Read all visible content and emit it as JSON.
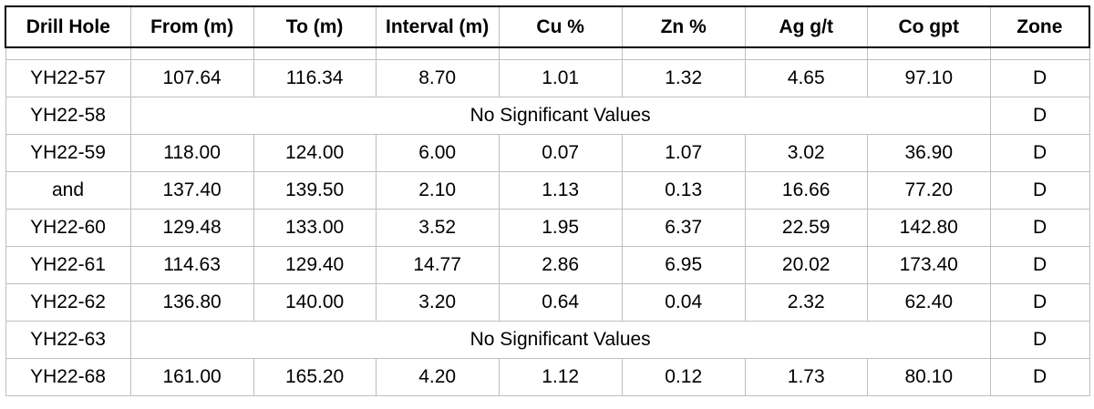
{
  "table": {
    "headers": [
      "Drill Hole",
      "From (m)",
      "To (m)",
      "Interval (m)",
      "Cu %",
      "Zn %",
      "Ag g/t",
      "Co gpt",
      "Zone"
    ],
    "rows": [
      {
        "hole": "YH22-57",
        "from": "107.64",
        "to": "116.34",
        "interval": "8.70",
        "cu": "1.01",
        "zn": "1.32",
        "ag": "4.65",
        "co": "97.10",
        "zone": "D"
      },
      {
        "hole": "YH22-58",
        "note": "No Significant Values",
        "zone": "D"
      },
      {
        "hole": "YH22-59",
        "from": "118.00",
        "to": "124.00",
        "interval": "6.00",
        "cu": "0.07",
        "zn": "1.07",
        "ag": "3.02",
        "co": "36.90",
        "zone": "D"
      },
      {
        "hole": "and",
        "from": "137.40",
        "to": "139.50",
        "interval": "2.10",
        "cu": "1.13",
        "zn": "0.13",
        "ag": "16.66",
        "co": "77.20",
        "zone": "D"
      },
      {
        "hole": "YH22-60",
        "from": "129.48",
        "to": "133.00",
        "interval": "3.52",
        "cu": "1.95",
        "zn": "6.37",
        "ag": "22.59",
        "co": "142.80",
        "zone": "D"
      },
      {
        "hole": "YH22-61",
        "from": "114.63",
        "to": "129.40",
        "interval": "14.77",
        "cu": "2.86",
        "zn": "6.95",
        "ag": "20.02",
        "co": "173.40",
        "zone": "D"
      },
      {
        "hole": "YH22-62",
        "from": "136.80",
        "to": "140.00",
        "interval": "3.20",
        "cu": "0.64",
        "zn": "0.04",
        "ag": "2.32",
        "co": "62.40",
        "zone": "D"
      },
      {
        "hole": "YH22-63",
        "note": "No Significant Values",
        "zone": "D"
      },
      {
        "hole": "YH22-68",
        "from": "161.00",
        "to": "165.20",
        "interval": "4.20",
        "cu": "1.12",
        "zn": "0.12",
        "ag": "1.73",
        "co": "80.10",
        "zone": "D"
      }
    ]
  }
}
